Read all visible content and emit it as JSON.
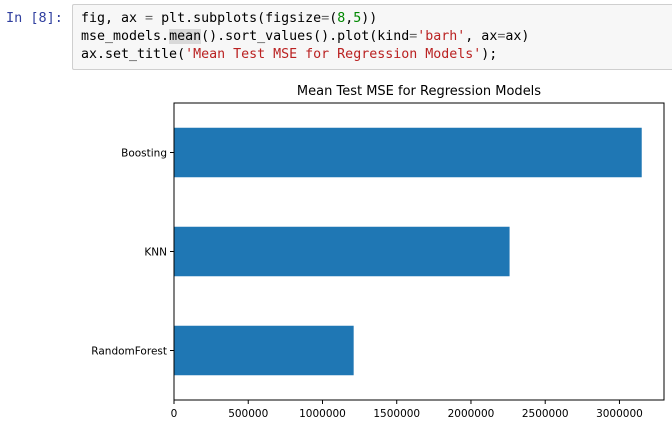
{
  "cell": {
    "prompt": "In [8]:",
    "code": {
      "line1": {
        "a": "fig, ax ",
        "eq": "=",
        "b": " plt.subplots(figsize",
        "eq2": "=",
        "c": "(",
        "n1": "8",
        "d": ",",
        "n2": "5",
        "e": "))"
      },
      "line2": {
        "a": "mse_models.",
        "hl": "mean",
        "b": "().sort_values().plot(kind",
        "eq": "=",
        "s": "'barh'",
        "c": ", ax",
        "eq2": "=",
        "d": "ax)"
      },
      "line3": {
        "a": "ax.set_title(",
        "s": "'Mean Test MSE for Regression Models'",
        "b": ");"
      }
    }
  },
  "chart_data": {
    "type": "bar",
    "orientation": "horizontal",
    "title": "Mean Test MSE for Regression Models",
    "xlabel": "",
    "ylabel": "",
    "categories": [
      "RandomForest",
      "KNN",
      "Boosting"
    ],
    "values": [
      1210000,
      2260000,
      3150000
    ],
    "xlim": [
      0,
      3300000
    ],
    "xticks": [
      0,
      500000,
      1000000,
      1500000,
      2000000,
      2500000,
      3000000
    ],
    "xtick_labels": [
      "0",
      "500000",
      "1000000",
      "1500000",
      "2000000",
      "2500000",
      "3000000"
    ],
    "bar_color": "#1f77b4",
    "grid": false,
    "legend": "none"
  }
}
